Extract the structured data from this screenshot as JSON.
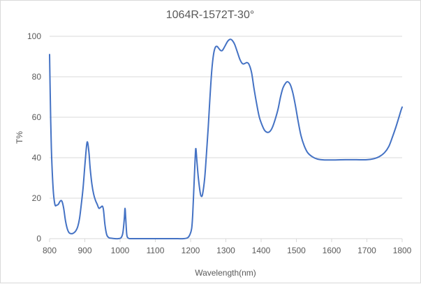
{
  "chart_data": {
    "type": "line",
    "title": "1064R-1572T-30°",
    "xlabel": "Wavelength(nm)",
    "ylabel": "T%",
    "xlim": [
      800,
      1800
    ],
    "ylim": [
      0,
      100
    ],
    "x_ticks": [
      "800",
      "900",
      "1000",
      "1100",
      "1200",
      "1300",
      "1400",
      "1500",
      "1600",
      "1700",
      "1800"
    ],
    "y_ticks": [
      "0",
      "20",
      "40",
      "60",
      "80",
      "100"
    ],
    "grid": "horizontal",
    "legend": "none",
    "series": [
      {
        "color": "#4472c4",
        "points": [
          [
            800,
            91
          ],
          [
            802,
            70
          ],
          [
            805,
            45
          ],
          [
            810,
            25
          ],
          [
            815,
            17
          ],
          [
            820,
            16.5
          ],
          [
            825,
            17
          ],
          [
            830,
            18.5
          ],
          [
            835,
            18.5
          ],
          [
            840,
            15
          ],
          [
            845,
            9
          ],
          [
            850,
            5
          ],
          [
            855,
            3
          ],
          [
            860,
            2.5
          ],
          [
            865,
            2.5
          ],
          [
            870,
            3
          ],
          [
            875,
            4
          ],
          [
            880,
            6
          ],
          [
            885,
            10
          ],
          [
            890,
            17
          ],
          [
            895,
            25
          ],
          [
            900,
            36
          ],
          [
            905,
            46
          ],
          [
            908,
            47.5
          ],
          [
            912,
            42
          ],
          [
            915,
            35
          ],
          [
            920,
            27
          ],
          [
            925,
            22
          ],
          [
            930,
            19
          ],
          [
            935,
            17
          ],
          [
            940,
            15
          ],
          [
            945,
            15.5
          ],
          [
            950,
            16
          ],
          [
            953,
            14
          ],
          [
            957,
            7
          ],
          [
            962,
            2
          ],
          [
            968,
            0.5
          ],
          [
            975,
            0.2
          ],
          [
            985,
            0
          ],
          [
            995,
            0
          ],
          [
            1003,
            0.5
          ],
          [
            1008,
            3
          ],
          [
            1012,
            10
          ],
          [
            1014,
            15
          ],
          [
            1016,
            10
          ],
          [
            1019,
            2
          ],
          [
            1023,
            0.3
          ],
          [
            1030,
            0
          ],
          [
            1060,
            0
          ],
          [
            1100,
            0
          ],
          [
            1150,
            0
          ],
          [
            1180,
            0
          ],
          [
            1192,
            0.5
          ],
          [
            1198,
            2
          ],
          [
            1203,
            5
          ],
          [
            1206,
            12
          ],
          [
            1210,
            28
          ],
          [
            1213,
            40
          ],
          [
            1215,
            44.5
          ],
          [
            1218,
            38
          ],
          [
            1222,
            30
          ],
          [
            1227,
            23
          ],
          [
            1230,
            21
          ],
          [
            1234,
            22
          ],
          [
            1240,
            30
          ],
          [
            1245,
            42
          ],
          [
            1250,
            55
          ],
          [
            1255,
            70
          ],
          [
            1260,
            83
          ],
          [
            1265,
            91
          ],
          [
            1270,
            94.5
          ],
          [
            1275,
            95
          ],
          [
            1280,
            94
          ],
          [
            1285,
            93
          ],
          [
            1290,
            93
          ],
          [
            1297,
            95
          ],
          [
            1305,
            97.5
          ],
          [
            1312,
            98.5
          ],
          [
            1318,
            98
          ],
          [
            1325,
            96
          ],
          [
            1333,
            92
          ],
          [
            1340,
            88.5
          ],
          [
            1347,
            86.5
          ],
          [
            1353,
            86.5
          ],
          [
            1360,
            87
          ],
          [
            1366,
            86
          ],
          [
            1373,
            82
          ],
          [
            1380,
            74
          ],
          [
            1388,
            66
          ],
          [
            1395,
            60
          ],
          [
            1403,
            56
          ],
          [
            1410,
            53.5
          ],
          [
            1418,
            52.5
          ],
          [
            1425,
            53
          ],
          [
            1432,
            55
          ],
          [
            1440,
            59
          ],
          [
            1448,
            64
          ],
          [
            1455,
            70
          ],
          [
            1462,
            74.5
          ],
          [
            1470,
            77
          ],
          [
            1476,
            77.5
          ],
          [
            1483,
            76
          ],
          [
            1490,
            72
          ],
          [
            1497,
            66
          ],
          [
            1505,
            58
          ],
          [
            1513,
            51
          ],
          [
            1522,
            46
          ],
          [
            1532,
            42.5
          ],
          [
            1545,
            40.5
          ],
          [
            1560,
            39.3
          ],
          [
            1580,
            38.9
          ],
          [
            1610,
            38.9
          ],
          [
            1640,
            39
          ],
          [
            1670,
            39
          ],
          [
            1700,
            39
          ],
          [
            1720,
            39.5
          ],
          [
            1735,
            40.5
          ],
          [
            1750,
            42.5
          ],
          [
            1762,
            45.5
          ],
          [
            1772,
            50
          ],
          [
            1782,
            55
          ],
          [
            1790,
            59.5
          ],
          [
            1796,
            63
          ],
          [
            1800,
            65
          ]
        ]
      }
    ]
  }
}
